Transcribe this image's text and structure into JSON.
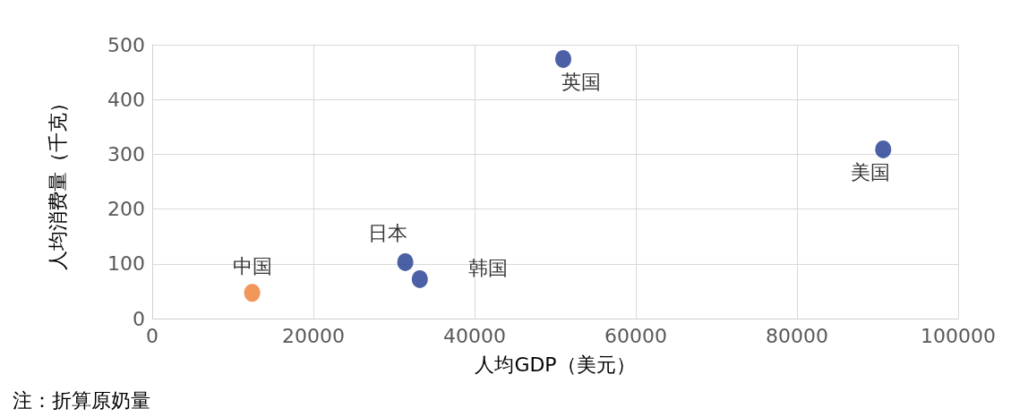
{
  "chart_data": {
    "type": "scatter",
    "xlabel": "人均GDP（美元）",
    "ylabel": "人均消费量（千克）",
    "annotations": [
      "注：折算原奶量"
    ],
    "xlim": [
      0,
      100000
    ],
    "xticks": [
      0,
      20000,
      40000,
      60000,
      80000,
      100000
    ],
    "ylim": [
      0,
      500
    ],
    "yticks": [
      0,
      100,
      200,
      300,
      400,
      500
    ],
    "grid": true,
    "legend": false,
    "marker": "circle",
    "series": [
      {
        "name": "中国",
        "color": "#ed7d31",
        "x": [
          12400
        ],
        "values": [
          47
        ]
      },
      {
        "name": "日本",
        "color": "#1f3a8f",
        "x": [
          31400
        ],
        "values": [
          103
        ]
      },
      {
        "name": "韩国",
        "color": "#1f3a8f",
        "x": [
          33200
        ],
        "values": [
          72
        ]
      },
      {
        "name": "英国",
        "color": "#1f3a8f",
        "x": [
          51000
        ],
        "values": [
          474
        ]
      },
      {
        "name": "美国",
        "color": "#1f3a8f",
        "x": [
          90700
        ],
        "values": [
          309
        ]
      }
    ]
  }
}
